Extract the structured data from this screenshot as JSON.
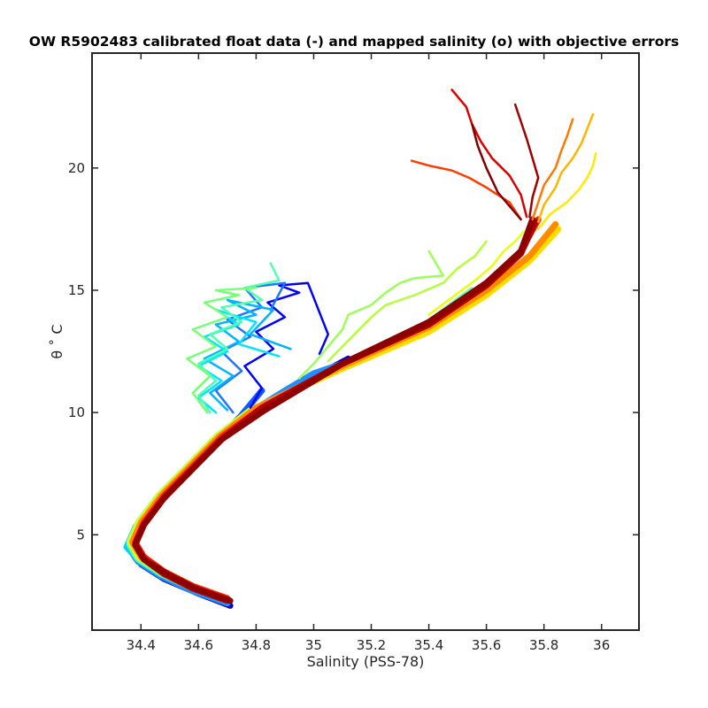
{
  "chart_data": {
    "type": "line",
    "title": "OW R5902483 calibrated float data (-) and mapped salinity (o) with objective errors",
    "xlabel": "Salinity (PSS-78)",
    "ylabel": "θ ˚ C",
    "xlim": [
      34.23,
      36.13
    ],
    "ylim": [
      1.1,
      24.7
    ],
    "xticks": [
      34.4,
      34.6,
      34.8,
      35,
      35.2,
      35.4,
      35.6,
      35.8,
      36
    ],
    "xtick_labels": [
      "34.4",
      "34.6",
      "34.8",
      "35",
      "35.2",
      "35.4",
      "35.6",
      "35.8",
      "36"
    ],
    "yticks": [
      5,
      10,
      15,
      20
    ],
    "ytick_labels": [
      "5",
      "10",
      "15",
      "20"
    ],
    "grid": false,
    "legend": "none",
    "colormap": "jet (profile index, blue = early, dark red = late)",
    "series_colors": [
      "#00008f",
      "#0000ff",
      "#0080ff",
      "#00ffff",
      "#80ff80",
      "#ffff00",
      "#ff8000",
      "#ff0000",
      "#800000"
    ],
    "series": [
      {
        "color": "#0000c8",
        "x": [
          34.71,
          34.6,
          34.48,
          34.4,
          34.36,
          34.38,
          34.45,
          34.55,
          34.66,
          34.78,
          34.92,
          35.04,
          35.12
        ],
        "y": [
          2.1,
          2.6,
          3.2,
          3.8,
          4.4,
          5.2,
          6.3,
          7.5,
          8.8,
          9.9,
          10.8,
          11.7,
          12.2
        ]
      },
      {
        "color": "#0a5aff",
        "x": [
          34.7,
          34.58,
          34.47,
          34.39,
          34.36,
          34.38,
          34.45,
          34.55,
          34.66,
          34.75,
          34.82
        ],
        "y": [
          2.2,
          2.7,
          3.3,
          3.9,
          4.5,
          5.3,
          6.4,
          7.6,
          8.8,
          9.9,
          10.9
        ]
      },
      {
        "color": "#1e90ff",
        "x": [
          34.7,
          34.58,
          34.47,
          34.39,
          34.36,
          34.39,
          34.46,
          34.56,
          34.66,
          34.75,
          34.9,
          35.0,
          35.1
        ],
        "y": [
          2.2,
          2.7,
          3.3,
          3.9,
          4.4,
          5.2,
          6.3,
          7.5,
          8.7,
          9.8,
          10.9,
          11.6,
          12.0
        ]
      },
      {
        "color": "#00d2ff",
        "x": [
          34.7,
          34.58,
          34.47,
          34.39,
          34.35,
          34.38,
          34.45,
          34.56,
          34.66,
          34.76,
          34.95,
          35.1,
          35.2
        ],
        "y": [
          2.3,
          2.8,
          3.4,
          4.0,
          4.5,
          5.3,
          6.4,
          7.6,
          8.8,
          9.9,
          11.0,
          11.8,
          12.3
        ]
      },
      {
        "color": "#64ff96",
        "x": [
          34.7,
          34.58,
          34.47,
          34.39,
          34.36,
          34.39,
          34.46,
          34.56,
          34.66,
          34.77,
          35.0,
          35.2,
          35.4,
          35.55
        ],
        "y": [
          2.3,
          2.8,
          3.4,
          4.0,
          4.6,
          5.4,
          6.5,
          7.7,
          8.9,
          10.0,
          11.3,
          12.4,
          13.7,
          15.0
        ]
      },
      {
        "color": "#c8ff3c",
        "x": [
          34.7,
          34.58,
          34.47,
          34.39,
          34.36,
          34.39,
          34.46,
          34.56,
          34.66,
          34.78,
          35.05,
          35.3,
          35.5,
          35.65
        ],
        "y": [
          2.4,
          2.9,
          3.5,
          4.1,
          4.7,
          5.5,
          6.6,
          7.8,
          9.0,
          10.1,
          11.6,
          12.9,
          14.3,
          15.6
        ]
      },
      {
        "color": "#ffdc00",
        "x": [
          34.7,
          34.58,
          34.48,
          34.4,
          34.37,
          34.4,
          34.47,
          34.57,
          34.67,
          34.8,
          35.1,
          35.4,
          35.6,
          35.75,
          35.85
        ],
        "y": [
          2.4,
          2.9,
          3.5,
          4.1,
          4.7,
          5.5,
          6.6,
          7.8,
          9.0,
          10.2,
          11.8,
          13.3,
          14.8,
          16.2,
          17.5
        ]
      },
      {
        "color": "#ff8c00",
        "x": [
          34.7,
          34.58,
          34.48,
          34.4,
          34.37,
          34.4,
          34.47,
          34.57,
          34.67,
          34.8,
          35.1,
          35.4,
          35.6,
          35.75,
          35.84
        ],
        "y": [
          2.4,
          2.9,
          3.5,
          4.1,
          4.7,
          5.5,
          6.6,
          7.8,
          9.0,
          10.2,
          11.9,
          13.5,
          15.0,
          16.4,
          17.7
        ]
      },
      {
        "color": "#ff1e00",
        "x": [
          34.7,
          34.58,
          34.48,
          34.41,
          34.38,
          34.41,
          34.48,
          34.58,
          34.68,
          34.82,
          35.1,
          35.4,
          35.6,
          35.72,
          35.78
        ],
        "y": [
          2.4,
          2.9,
          3.5,
          4.1,
          4.7,
          5.5,
          6.6,
          7.8,
          9.0,
          10.2,
          12.0,
          13.6,
          15.2,
          16.6,
          17.9
        ]
      },
      {
        "color": "#b40000",
        "x": [
          34.7,
          34.58,
          34.48,
          34.41,
          34.38,
          34.41,
          34.48,
          34.58,
          34.68,
          34.82,
          35.1,
          35.4,
          35.6,
          35.72,
          35.77
        ],
        "y": [
          2.3,
          2.8,
          3.4,
          4.0,
          4.6,
          5.4,
          6.5,
          7.7,
          8.9,
          10.2,
          12.0,
          13.6,
          15.2,
          16.5,
          17.8
        ]
      },
      {
        "color": "#8c0000",
        "x": [
          34.71,
          34.59,
          34.49,
          34.41,
          34.38,
          34.41,
          34.48,
          34.58,
          34.68,
          34.83,
          35.1,
          35.4,
          35.6,
          35.72,
          35.76
        ],
        "y": [
          2.3,
          2.8,
          3.4,
          4.0,
          4.6,
          5.4,
          6.5,
          7.7,
          8.9,
          10.1,
          12.0,
          13.7,
          15.3,
          16.6,
          17.9
        ]
      },
      {
        "color": "#0000ff",
        "x": [
          34.78,
          34.82,
          34.76,
          34.86,
          34.8,
          34.9,
          34.84,
          34.95,
          34.88,
          34.98,
          35.05,
          35.02
        ],
        "y": [
          10.2,
          11.0,
          11.9,
          12.6,
          13.3,
          13.9,
          14.5,
          14.9,
          15.2,
          15.3,
          13.2,
          12.4
        ]
      },
      {
        "color": "#1e78ff",
        "x": [
          34.72,
          34.66,
          34.75,
          34.68,
          34.78,
          34.7,
          34.82,
          34.76,
          34.9,
          34.85
        ],
        "y": [
          10.0,
          10.9,
          11.7,
          12.5,
          13.1,
          13.8,
          14.3,
          15.1,
          15.3,
          14.2
        ]
      },
      {
        "color": "#00b4ff",
        "x": [
          34.7,
          34.64,
          34.72,
          34.62,
          34.74,
          34.66,
          34.8,
          34.7,
          34.86,
          34.78,
          34.92
        ],
        "y": [
          10.1,
          10.8,
          11.5,
          12.2,
          12.9,
          13.6,
          14.0,
          14.6,
          14.2,
          13.2,
          12.6
        ]
      },
      {
        "color": "#00e6ff",
        "x": [
          34.66,
          34.6,
          34.68,
          34.6,
          34.7,
          34.62,
          34.74,
          34.66,
          34.8,
          34.74,
          34.88
        ],
        "y": [
          10.0,
          10.6,
          11.3,
          11.9,
          12.5,
          13.1,
          13.6,
          14.2,
          13.7,
          12.8,
          12.3
        ]
      },
      {
        "color": "#50ffb4",
        "x": [
          34.64,
          34.6,
          34.66,
          34.6,
          34.7,
          34.64,
          34.75,
          34.68,
          34.82,
          34.76,
          34.88,
          34.85
        ],
        "y": [
          10.0,
          10.7,
          11.3,
          12.0,
          12.6,
          13.2,
          13.7,
          14.3,
          14.6,
          15.1,
          15.4,
          16.1
        ]
      },
      {
        "color": "#78ff78",
        "x": [
          34.63,
          34.58,
          34.64,
          34.56,
          34.66,
          34.58,
          34.7,
          34.62,
          34.74,
          34.66,
          34.8
        ],
        "y": [
          10.0,
          10.8,
          11.5,
          12.2,
          12.7,
          13.4,
          13.9,
          14.5,
          14.8,
          15.0,
          15.1
        ]
      },
      {
        "color": "#9bff5a",
        "x": [
          34.95,
          35.0,
          35.05,
          35.1,
          35.12,
          35.2,
          35.25,
          35.3,
          35.35,
          35.45,
          35.4
        ],
        "y": [
          11.4,
          12.0,
          12.7,
          13.4,
          14.0,
          14.4,
          14.9,
          15.3,
          15.5,
          15.6,
          16.6
        ]
      },
      {
        "color": "#b4ff3c",
        "x": [
          35.05,
          35.1,
          35.15,
          35.2,
          35.25,
          35.35,
          35.45,
          35.5,
          35.56,
          35.6
        ],
        "y": [
          12.1,
          12.7,
          13.3,
          13.9,
          14.4,
          14.8,
          15.3,
          15.9,
          16.4,
          17.0
        ]
      },
      {
        "color": "#e6ff14",
        "x": [
          35.4,
          35.48,
          35.56,
          35.62,
          35.66,
          35.7,
          35.73
        ],
        "y": [
          14.0,
          14.7,
          15.4,
          16.0,
          16.6,
          17.0,
          17.4
        ]
      },
      {
        "color": "#ffeb00",
        "x": [
          35.78,
          35.82,
          35.88,
          35.92,
          35.95,
          35.97,
          35.98
        ],
        "y": [
          17.5,
          18.1,
          18.6,
          19.1,
          19.6,
          20.1,
          20.6
        ]
      },
      {
        "color": "#ffb400",
        "x": [
          35.78,
          35.8,
          35.84,
          35.86,
          35.9,
          35.93,
          35.95,
          35.97
        ],
        "y": [
          17.8,
          18.5,
          19.2,
          19.8,
          20.4,
          21.0,
          21.6,
          22.2
        ]
      },
      {
        "color": "#ff7800",
        "x": [
          35.76,
          35.78,
          35.8,
          35.84,
          35.86,
          35.88,
          35.9
        ],
        "y": [
          17.9,
          18.6,
          19.3,
          20.0,
          20.7,
          21.3,
          22.0
        ]
      },
      {
        "color": "#ff3c00",
        "x": [
          35.72,
          35.68,
          35.6,
          35.54,
          35.48,
          35.4,
          35.34
        ],
        "y": [
          17.9,
          18.6,
          19.2,
          19.6,
          19.9,
          20.1,
          20.3
        ]
      },
      {
        "color": "#dc0000",
        "x": [
          35.74,
          35.72,
          35.68,
          35.62,
          35.58,
          35.55,
          35.53,
          35.48
        ],
        "y": [
          18.0,
          18.9,
          19.7,
          20.4,
          21.1,
          21.8,
          22.5,
          23.2
        ]
      },
      {
        "color": "#a00000",
        "x": [
          35.75,
          35.76,
          35.78,
          35.76,
          35.74,
          35.72,
          35.7
        ],
        "y": [
          18.0,
          18.8,
          19.6,
          20.4,
          21.2,
          21.9,
          22.6
        ]
      },
      {
        "color": "#800000",
        "x": [
          35.72,
          35.64,
          35.6,
          35.57,
          35.55
        ],
        "y": [
          17.9,
          19.0,
          20.0,
          20.9,
          21.8
        ]
      }
    ]
  }
}
